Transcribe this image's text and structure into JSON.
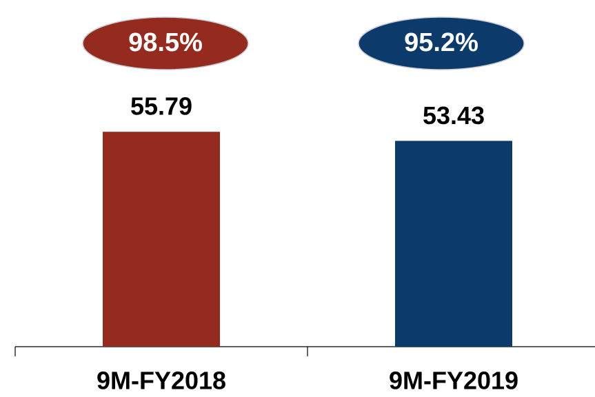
{
  "chart_data": {
    "type": "bar",
    "categories": [
      "9M-FY2018",
      "9M-FY2019"
    ],
    "values": [
      55.79,
      53.43
    ],
    "colors": [
      "#952a1f",
      "#0b3a6b"
    ],
    "annotations": [
      "98.5%",
      "95.2%"
    ],
    "ylim": [
      0,
      90
    ]
  }
}
